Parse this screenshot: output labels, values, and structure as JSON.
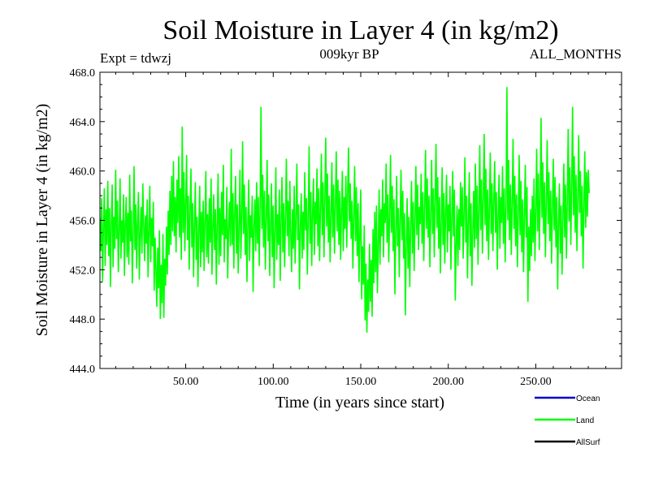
{
  "chart_data": {
    "type": "line",
    "title": "Soil Moisture in Layer 4 (in kg/m2)",
    "subtitle_left": "Expt = tdwzj",
    "subtitle_center": "009kyr BP",
    "subtitle_right": "ALL_MONTHS",
    "xlabel": "Time (in years since start)",
    "ylabel": "Soil Moisture in Layer 4 (in kg/m2)",
    "xlim": [
      1,
      299
    ],
    "ylim": [
      444.0,
      468.0
    ],
    "x_ticks": [
      50,
      100,
      150,
      200,
      250
    ],
    "x_tick_labels": [
      "50.00",
      "100.00",
      "150.00",
      "200.00",
      "250.00"
    ],
    "y_ticks": [
      444,
      448,
      452,
      456,
      460,
      464,
      468
    ],
    "y_tick_labels": [
      "444.0",
      "448.0",
      "452.0",
      "456.0",
      "460.0",
      "464.0",
      "468.0"
    ],
    "grid": false,
    "legend_position": "bottom-right",
    "legend": [
      {
        "name": "Ocean",
        "color": "#0000cc"
      },
      {
        "name": "Land",
        "color": "#00ff00"
      },
      {
        "name": "AllSurf",
        "color": "#000000"
      }
    ],
    "series": [
      {
        "name": "Land",
        "color": "#00ff00",
        "x_start": 1,
        "x_step": 0.5,
        "values": [
          456.2,
          453.5,
          457.8,
          451.0,
          455.4,
          458.6,
          452.3,
          456.9,
          454.0,
          459.2,
          453.1,
          457.0,
          450.6,
          455.8,
          458.9,
          452.2,
          456.3,
          453.7,
          460.1,
          454.5,
          457.6,
          451.8,
          455.1,
          459.4,
          452.9,
          456.0,
          454.2,
          458.1,
          451.5,
          455.7,
          457.9,
          453.0,
          456.6,
          452.4,
          459.7,
          454.3,
          456.8,
          450.9,
          455.0,
          460.4,
          453.6,
          457.3,
          452.1,
          455.9,
          458.3,
          451.2,
          454.8,
          457.1,
          453.3,
          459.0,
          455.6,
          452.7,
          456.4,
          454.1,
          457.7,
          451.4,
          455.3,
          458.8,
          452.6,
          456.2,
          453.9,
          457.5,
          450.3,
          454.6,
          452.0,
          449.0,
          453.8,
          450.5,
          455.2,
          448.0,
          452.4,
          449.3,
          454.9,
          448.1,
          452.9,
          450.7,
          455.5,
          451.6,
          456.8,
          453.2,
          458.4,
          454.0,
          459.6,
          455.1,
          460.8,
          454.7,
          457.9,
          453.4,
          459.3,
          455.8,
          461.2,
          454.6,
          458.6,
          452.8,
          463.6,
          455.0,
          459.9,
          453.5,
          457.2,
          461.3,
          454.4,
          458.0,
          452.0,
          456.9,
          460.2,
          453.8,
          457.4,
          451.4,
          455.5,
          459.1,
          452.8,
          456.3,
          450.6,
          455.1,
          458.8,
          452.2,
          456.7,
          453.4,
          457.6,
          451.9,
          455.9,
          460.0,
          453.0,
          456.5,
          452.5,
          457.8,
          454.2,
          459.4,
          451.6,
          455.3,
          458.1,
          453.6,
          456.9,
          450.8,
          455.7,
          459.8,
          452.4,
          457.0,
          453.1,
          458.3,
          454.8,
          460.5,
          452.6,
          456.1,
          454.5,
          458.7,
          451.3,
          455.2,
          457.5,
          453.9,
          461.8,
          454.0,
          458.2,
          452.1,
          456.6,
          459.6,
          453.3,
          457.3,
          451.7,
          455.4,
          460.1,
          452.9,
          456.2,
          462.4,
          454.9,
          458.9,
          453.2,
          457.1,
          451.0,
          455.8,
          459.3,
          452.7,
          456.4,
          454.6,
          458.0,
          450.2,
          455.5,
          457.7,
          453.5,
          459.1,
          454.1,
          457.9,
          452.3,
          456.8,
          465.2,
          455.3,
          459.7,
          453.8,
          458.4,
          452.0,
          456.0,
          460.9,
          454.3,
          458.1,
          451.5,
          455.6,
          459.0,
          453.0,
          457.2,
          450.5,
          455.1,
          460.3,
          452.8,
          456.5,
          454.0,
          458.5,
          451.1,
          455.9,
          459.5,
          453.4,
          457.4,
          452.2,
          456.3,
          461.0,
          454.7,
          457.6,
          453.1,
          459.2,
          455.0,
          451.8,
          456.9,
          453.7,
          458.8,
          452.5,
          456.1,
          460.6,
          454.4,
          457.3,
          450.4,
          455.4,
          458.2,
          452.9,
          456.7,
          453.6,
          459.9,
          455.2,
          457.8,
          451.6,
          456.0,
          462.0,
          454.1,
          458.3,
          452.3,
          456.6,
          459.4,
          453.2,
          457.5,
          455.7,
          460.2,
          453.9,
          458.6,
          452.7,
          457.0,
          461.4,
          454.8,
          459.1,
          453.0,
          457.7,
          462.7,
          455.5,
          459.8,
          454.2,
          458.0,
          452.6,
          456.4,
          460.7,
          454.6,
          458.9,
          453.3,
          457.1,
          461.6,
          455.1,
          459.3,
          454.0,
          458.4,
          452.8,
          456.8,
          460.0,
          453.5,
          457.9,
          455.3,
          459.6,
          453.8,
          458.2,
          461.9,
          455.9,
          459.0,
          454.5,
          457.6,
          452.1,
          456.2,
          460.4,
          454.3,
          458.7,
          453.1,
          457.4,
          451.0,
          455.0,
          458.5,
          449.6,
          453.9,
          450.8,
          455.6,
          447.9,
          452.5,
          446.9,
          451.2,
          448.6,
          454.1,
          449.4,
          452.8,
          448.2,
          455.3,
          450.9,
          456.7,
          451.8,
          457.2,
          450.1,
          453.6,
          458.5,
          452.4,
          456.9,
          454.7,
          459.3,
          453.0,
          457.4,
          455.8,
          460.6,
          454.2,
          458.1,
          452.6,
          456.4,
          461.3,
          455.0,
          458.8,
          453.5,
          457.7,
          450.0,
          455.2,
          459.6,
          453.9,
          457.0,
          451.4,
          455.9,
          460.1,
          454.4,
          458.4,
          452.9,
          456.6,
          448.3,
          454.0,
          457.8,
          452.1,
          456.3,
          450.6,
          455.4,
          459.2,
          453.3,
          457.5,
          451.9,
          456.0,
          460.4,
          454.8,
          458.9,
          453.6,
          457.1,
          455.7,
          459.8,
          454.1,
          458.3,
          452.7,
          456.8,
          461.7,
          455.3,
          459.4,
          454.6,
          458.0,
          452.2,
          456.5,
          460.9,
          454.9,
          458.6,
          453.0,
          457.6,
          462.2,
          455.4,
          459.5,
          453.7,
          457.9,
          451.7,
          455.8,
          460.3,
          454.0,
          458.2,
          452.5,
          456.7,
          459.7,
          453.4,
          457.3,
          455.1,
          458.8,
          452.0,
          456.1,
          460.0,
          454.7,
          458.5,
          449.5,
          453.8,
          457.2,
          452.3,
          456.9,
          453.6,
          459.1,
          455.5,
          458.7,
          452.9,
          456.6,
          461.1,
          454.2,
          458.0,
          451.3,
          455.9,
          459.9,
          453.1,
          457.4,
          450.7,
          455.0,
          458.4,
          453.8,
          460.6,
          454.5,
          458.8,
          452.4,
          456.8,
          462.1,
          455.2,
          459.3,
          453.3,
          457.8,
          463.0,
          455.6,
          460.2,
          454.3,
          458.5,
          452.8,
          457.0,
          461.5,
          454.9,
          459.0,
          453.5,
          457.6,
          460.8,
          455.0,
          458.3,
          452.0,
          456.4,
          459.7,
          453.7,
          457.9,
          455.8,
          460.4,
          454.1,
          458.6,
          452.6,
          457.1,
          466.8,
          456.0,
          460.9,
          454.4,
          458.9,
          453.2,
          457.3,
          462.6,
          455.3,
          459.6,
          453.9,
          458.1,
          452.2,
          456.5,
          461.3,
          454.8,
          459.2,
          453.4,
          457.7,
          451.8,
          456.2,
          460.5,
          454.6,
          458.7,
          449.4,
          455.5,
          451.9,
          456.9,
          453.1,
          458.0,
          454.2,
          459.4,
          452.7,
          456.6,
          461.8,
          455.1,
          459.8,
          453.6,
          457.8,
          464.3,
          456.2,
          460.7,
          454.9,
          459.1,
          453.0,
          457.4,
          462.5,
          455.7,
          459.9,
          454.3,
          458.4,
          452.5,
          456.8,
          461.0,
          455.2,
          459.5,
          453.8,
          457.9,
          450.4,
          455.6,
          459.0,
          453.3,
          457.2,
          451.6,
          456.1,
          460.6,
          454.6,
          458.9,
          452.9,
          457.5,
          463.4,
          455.9,
          460.3,
          454.0,
          458.6,
          465.2,
          456.4,
          461.2,
          455.0,
          459.7,
          453.5,
          457.8,
          462.9,
          456.6,
          460.0,
          454.7,
          458.8,
          452.1,
          457.1,
          461.6,
          455.4,
          459.9,
          456.3,
          460.1,
          458.2
        ]
      }
    ]
  }
}
